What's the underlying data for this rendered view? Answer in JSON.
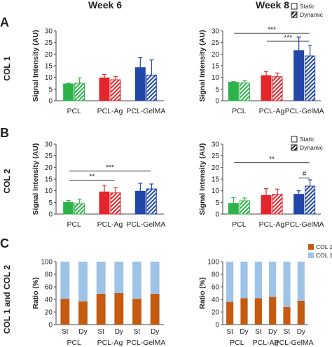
{
  "headers": {
    "week6": "Week 6",
    "week8": "Week 8"
  },
  "panels": {
    "A": "A",
    "B": "B",
    "C": "C"
  },
  "row_labels": {
    "A": "COL 1",
    "B": "COL 2",
    "C": "COL 1 and COL 2"
  },
  "legend_static_dynamic": {
    "static": "Static",
    "dynamic": "Dynamic"
  },
  "legend_ratio": {
    "col2": "COL 2",
    "col1": "COL 1"
  },
  "colors": {
    "PCL": "#2db34a",
    "PCL-Ag": "#e3262b",
    "PCL-GelMA": "#2347a8",
    "col1": "#9dc3e6",
    "col2": "#c55a11"
  },
  "chart_data": [
    {
      "id": "A-week6",
      "type": "bar",
      "categories": [
        "PCL",
        "PCL-Ag",
        "PCL-GelMA"
      ],
      "series": [
        {
          "name": "Static",
          "values": [
            7.2,
            9.8,
            14.2
          ],
          "errors": [
            0.3,
            1.5,
            4.3
          ]
        },
        {
          "name": "Dynamic",
          "values": [
            7.5,
            9.0,
            11.0
          ],
          "errors": [
            2.3,
            1.3,
            6.5
          ]
        }
      ],
      "ylabel": "Signal Intensity (AU)",
      "ylim": [
        0,
        30
      ],
      "yticks": [
        0,
        5,
        10,
        15,
        20,
        25,
        30
      ],
      "significance": []
    },
    {
      "id": "A-week8",
      "type": "bar",
      "categories": [
        "PCL",
        "PCL-Ag",
        "PCL-GelMA"
      ],
      "series": [
        {
          "name": "Static",
          "values": [
            7.9,
            10.8,
            21.5
          ],
          "errors": [
            0.3,
            1.7,
            5.8
          ]
        },
        {
          "name": "Dynamic",
          "values": [
            7.7,
            10.3,
            19.2
          ],
          "errors": [
            1.0,
            1.6,
            4.5
          ]
        }
      ],
      "ylabel": "Signal Intensity (AU)",
      "ylim": [
        0,
        30
      ],
      "yticks": [
        0,
        5,
        10,
        15,
        20,
        25,
        30
      ],
      "significance": [
        {
          "from": 0,
          "to": 2,
          "label": "***",
          "y": 29.0
        },
        {
          "from": 1,
          "to": 2,
          "label": "***",
          "y": 25.5
        }
      ]
    },
    {
      "id": "B-week6",
      "type": "bar",
      "categories": [
        "PCL",
        "PCL-Ag",
        "PCL-GelMA"
      ],
      "series": [
        {
          "name": "Static",
          "values": [
            5.0,
            9.5,
            9.8
          ],
          "errors": [
            0.8,
            2.8,
            3.4
          ]
        },
        {
          "name": "Dynamic",
          "values": [
            4.5,
            9.1,
            10.8
          ],
          "errors": [
            1.9,
            2.2,
            2.1
          ]
        }
      ],
      "ylabel": "Signal Intensity (AU)",
      "ylim": [
        0,
        30
      ],
      "yticks": [
        0,
        5,
        10,
        15,
        20,
        25,
        30
      ],
      "significance": [
        {
          "from": 0,
          "to": 2,
          "label": "***",
          "y": 18.5
        },
        {
          "from": 0,
          "to": 1,
          "label": "**",
          "y": 14.5
        }
      ]
    },
    {
      "id": "B-week8",
      "type": "bar",
      "categories": [
        "PCL",
        "PCL-Ag",
        "PCL-GelMA"
      ],
      "series": [
        {
          "name": "Static",
          "values": [
            4.6,
            8.0,
            8.5
          ],
          "errors": [
            2.5,
            2.9,
            1.5
          ]
        },
        {
          "name": "Dynamic",
          "values": [
            5.7,
            8.5,
            12.0
          ],
          "errors": [
            1.2,
            2.2,
            2.7
          ]
        }
      ],
      "ylabel": "Signal Intensity (AU)",
      "ylim": [
        0,
        30
      ],
      "yticks": [
        0,
        5,
        10,
        15,
        20,
        25,
        30
      ],
      "significance": [
        {
          "from": 0,
          "to": 2,
          "label": "**",
          "y": 22.0
        },
        {
          "from": 2,
          "to": 2,
          "label": "#",
          "y": 15.5
        }
      ]
    },
    {
      "id": "C-week6",
      "type": "bar",
      "stacked": true,
      "categories": [
        "St",
        "Dy",
        "St",
        "Dy",
        "St",
        "Dy"
      ],
      "groups": [
        "PCL",
        "PCL-Ag",
        "PCL-GelMA"
      ],
      "series": [
        {
          "name": "COL 2",
          "values": [
            41,
            37,
            49,
            50,
            41,
            49
          ]
        },
        {
          "name": "COL 1",
          "values": [
            59,
            63,
            51,
            50,
            59,
            51
          ]
        }
      ],
      "ylabel": "Ratio (%)",
      "ylim": [
        0,
        100
      ],
      "yticks": [
        0,
        20,
        40,
        60,
        80,
        100
      ]
    },
    {
      "id": "C-week8",
      "type": "bar",
      "stacked": true,
      "categories": [
        "St",
        "Dy",
        "St",
        "Dy",
        "St",
        "Dy"
      ],
      "groups": [
        "PCL",
        "PCL-Ag",
        "PCL-GelMA"
      ],
      "series": [
        {
          "name": "COL 2",
          "values": [
            36,
            42,
            42,
            44,
            28,
            38
          ]
        },
        {
          "name": "COL 1",
          "values": [
            64,
            58,
            58,
            56,
            72,
            62
          ]
        }
      ],
      "ylabel": "Ratio (%)",
      "ylim": [
        0,
        100
      ],
      "yticks": [
        0,
        20,
        40,
        60,
        80,
        100
      ]
    }
  ]
}
